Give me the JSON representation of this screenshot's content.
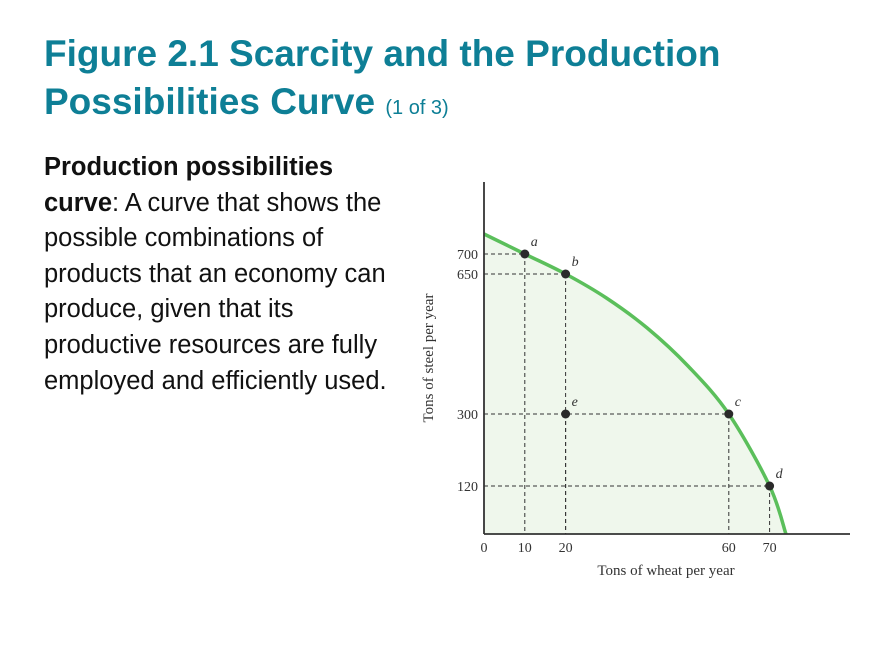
{
  "slide": {
    "title_main": "Figure 2.1 Scarcity and the Production Possibilities Curve",
    "title_sub": "(1 of 3)",
    "definition_term": "Production possibilities curve",
    "definition_text": ": A curve that shows the possible combinations of products that an economy can produce, given that its productive resources are fully employed and efficiently used."
  },
  "colors": {
    "title": "#0e7f96",
    "curve": "#5bbf5b",
    "fill": "#eff7ec",
    "axis": "#333333"
  },
  "chart_data": {
    "type": "line",
    "xlabel": "Tons of wheat per year",
    "ylabel": "Tons of steel per year",
    "xlim": [
      0,
      90
    ],
    "ylim": [
      0,
      880
    ],
    "x_ticks": [
      0,
      10,
      20,
      60,
      70
    ],
    "y_ticks": [
      120,
      300,
      650,
      700
    ],
    "curve_shaded": true,
    "series": [
      {
        "x": [
          0,
          10,
          20,
          30,
          40,
          50,
          60,
          70,
          74
        ],
        "y": [
          750,
          700,
          650,
          590,
          515,
          420,
          300,
          120,
          0
        ]
      }
    ],
    "points": [
      {
        "label": "a",
        "x": 10,
        "y": 700,
        "on_curve": true
      },
      {
        "label": "b",
        "x": 20,
        "y": 650,
        "on_curve": true
      },
      {
        "label": "c",
        "x": 60,
        "y": 300,
        "on_curve": true
      },
      {
        "label": "d",
        "x": 70,
        "y": 120,
        "on_curve": true
      },
      {
        "label": "e",
        "x": 20,
        "y": 300,
        "on_curve": false
      }
    ]
  }
}
